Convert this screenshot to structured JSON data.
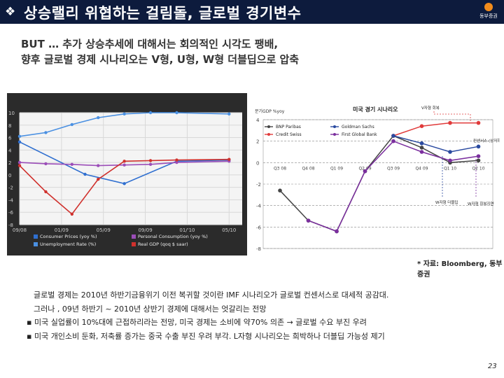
{
  "slide": {
    "title": "상승랠리 위협하는 걸림돌, 글로벌 경기변수",
    "logo_text": "동부증권",
    "headline_lines": [
      "BUT … 추가 상승추세에 대해서는 회의적인 시각도 팽배,",
      "향후 글로벌 경제 시나리오는 V형, U형, W형 더블딥으로 압축"
    ],
    "source": "* 자료: Bloomberg, 동부증권",
    "bullets": [
      "글로벌 경제는 2010년 하반기금융위기 이전 복귀할 것이란 IMF 시나리오가 글로벌 컨센서스로 대세적 공감대.",
      "그러나 , 09년 하반기 ~ 2010년 상반기 경제에 대해서는 엇갈리는 전망",
      "미국 실업률이 10%대에 근접하리라는 전망, 미국 경제는 소비에 약70% 의존 → 글로벌 수요 부진 우려",
      "미국 개인소비 둔화, 저축률 증가는 중국 수출 부진 우려 부각. L자형 시나리오는 희박하나 더블딥 가능성 제기"
    ],
    "bullet_marker": "▪",
    "page_number": "23",
    "colors": {
      "title_bg": "#0d1b3d",
      "logo_accent": "#f28c1c"
    }
  },
  "chart_data": [
    {
      "type": "line",
      "x": [
        "09/08",
        "01/09",
        "05/09",
        "09/09",
        "01/'10",
        "05/10"
      ],
      "ylim": [
        -8,
        10
      ],
      "yticks": [
        -8,
        -6,
        -4,
        -2,
        0,
        2,
        4,
        6,
        8,
        10
      ],
      "grid": true,
      "legend": "bottom",
      "series": [
        {
          "name": "Consumer Prices (yoy %)",
          "color": "#2f6fd0",
          "points": [
            [
              0,
              5.3
            ],
            [
              2.5,
              0.1
            ],
            [
              4,
              -1.4
            ],
            [
              6,
              2.2
            ],
            [
              8,
              2.4
            ]
          ]
        },
        {
          "name": "Unemployment Rate (%)",
          "color": "#4a90e2",
          "points": [
            [
              0,
              6.2
            ],
            [
              1,
              6.8
            ],
            [
              2,
              8.1
            ],
            [
              3,
              9.2
            ],
            [
              4,
              9.8
            ],
            [
              5,
              10.0
            ],
            [
              6,
              10.0
            ],
            [
              8,
              9.8
            ]
          ]
        },
        {
          "name": "Personal Consumption (yoy %)",
          "color": "#9b4db8",
          "points": [
            [
              0,
              2.0
            ],
            [
              1,
              1.8
            ],
            [
              2,
              1.7
            ],
            [
              3,
              1.5
            ],
            [
              4,
              1.6
            ],
            [
              5,
              1.7
            ],
            [
              6,
              2.0
            ],
            [
              8,
              2.2
            ]
          ]
        },
        {
          "name": "Real GDP (qoq $ saar)",
          "color": "#d0312d",
          "points": [
            [
              0,
              1.5
            ],
            [
              1,
              -2.7
            ],
            [
              2,
              -6.3
            ],
            [
              3,
              -0.7
            ],
            [
              4,
              2.2
            ],
            [
              5,
              2.3
            ],
            [
              6,
              2.4
            ],
            [
              8,
              2.5
            ]
          ]
        }
      ]
    },
    {
      "type": "line",
      "title": "미국 경기 시나리오",
      "ylabel": "분기GDP %yoy",
      "x": [
        "Q3 08",
        "Q4 08",
        "Q1 09",
        "Q2 09",
        "Q3 09",
        "Q4 09",
        "Q1 10",
        "Q2 10"
      ],
      "ylim": [
        -8,
        4
      ],
      "yticks": [
        -8,
        -6,
        -4,
        -2,
        0,
        2,
        4
      ],
      "grid": false,
      "legend": "top-left",
      "annotations": [
        "V자형 회복",
        "컨센서스 (상저하고)",
        "W자형 더블딥",
        "W자형 회복지연"
      ],
      "series": [
        {
          "name": "BNP Paribas",
          "color": "#444444",
          "points": [
            [
              0,
              -2.6
            ],
            [
              1,
              -5.4
            ],
            [
              2,
              -6.4
            ],
            [
              3,
              -0.8
            ],
            [
              4,
              2.5
            ],
            [
              5,
              1.4
            ],
            [
              6,
              0.0
            ],
            [
              7,
              0.2
            ]
          ]
        },
        {
          "name": "Credit Swiss",
          "color": "#e03a3a",
          "points": [
            [
              4,
              2.5
            ],
            [
              5,
              3.4
            ],
            [
              6,
              3.7
            ],
            [
              7,
              3.7
            ]
          ]
        },
        {
          "name": "Goldman Sachs",
          "color": "#2a4aa0",
          "points": [
            [
              4,
              2.5
            ],
            [
              5,
              1.8
            ],
            [
              6,
              1.0
            ],
            [
              7,
              1.5
            ]
          ]
        },
        {
          "name": "First Global Bank",
          "color": "#7b2f9e",
          "points": [
            [
              1,
              -5.4
            ],
            [
              2,
              -6.4
            ],
            [
              3,
              -0.8
            ],
            [
              4,
              2.0
            ],
            [
              5,
              1.0
            ],
            [
              6,
              0.2
            ],
            [
              7,
              0.6
            ]
          ]
        }
      ]
    }
  ]
}
